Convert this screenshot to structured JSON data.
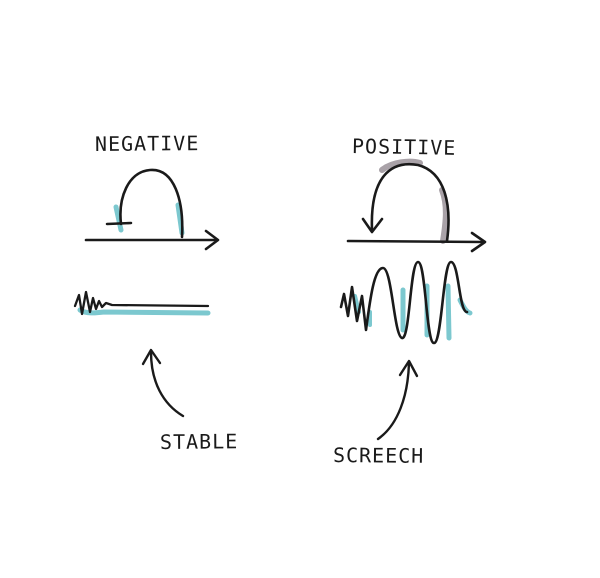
{
  "labels": {
    "negative": "NEGATIVE",
    "positive": "POSITIVE",
    "stable": "STABLE",
    "screech": "SCREECH"
  },
  "colors": {
    "ink": "#1a1a1a",
    "teal_shadow": "#7cc8cf",
    "gray_shadow": "#a9a2a8",
    "background": "#ffffff"
  }
}
